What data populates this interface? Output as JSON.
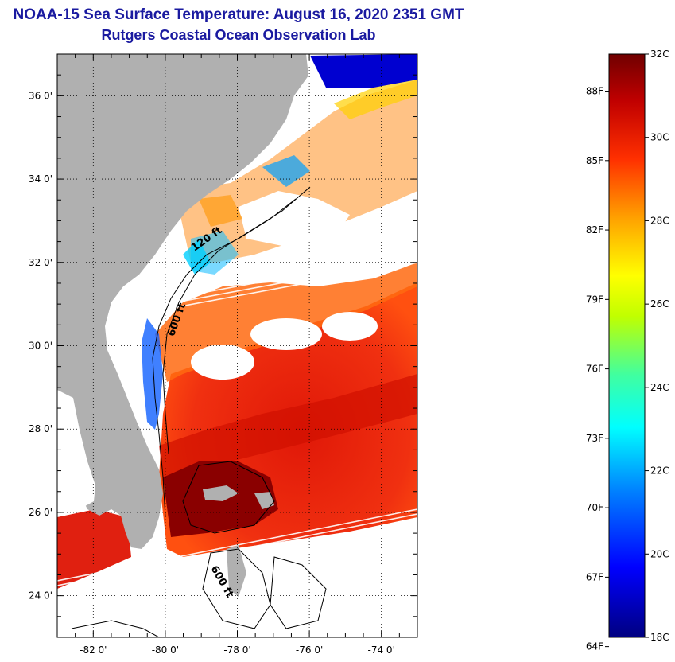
{
  "title": {
    "line1": "NOAA-15 Sea Surface Temperature:  August 16, 2020 2351 GMT",
    "line2": "Rutgers Coastal Ocean Observation Lab"
  },
  "map": {
    "lat_range": [
      23,
      37
    ],
    "lon_range": [
      -83,
      -73
    ],
    "lat_ticks": [
      {
        "value": 24,
        "label": "24 0'"
      },
      {
        "value": 26,
        "label": "26 0'"
      },
      {
        "value": 28,
        "label": "28 0'"
      },
      {
        "value": 30,
        "label": "30 0'"
      },
      {
        "value": 32,
        "label": "32 0'"
      },
      {
        "value": 34,
        "label": "34 0'"
      },
      {
        "value": 36,
        "label": "36 0'"
      }
    ],
    "lon_ticks": [
      {
        "value": -82,
        "label": "-82 0'"
      },
      {
        "value": -80,
        "label": "-80 0'"
      },
      {
        "value": -78,
        "label": "-78 0'"
      },
      {
        "value": -76,
        "label": "-76 0'"
      },
      {
        "value": -74,
        "label": "-74 0'"
      }
    ],
    "contour_labels": [
      {
        "text": "120 ft",
        "lon": -78.8,
        "lat": 32.5,
        "angle": -35
      },
      {
        "text": "600 ft",
        "lon": -79.6,
        "lat": 30.6,
        "angle": -70
      },
      {
        "text": "600 ft",
        "lon": -78.5,
        "lat": 24.3,
        "angle": 60
      }
    ],
    "land_color": "#b0b0b0",
    "cloud_color": "#ffffff"
  },
  "colorbar": {
    "min_c": 18,
    "max_c": 32,
    "celsius_ticks": [
      {
        "value": 32,
        "label": "32C"
      },
      {
        "value": 30,
        "label": "30C"
      },
      {
        "value": 28,
        "label": "28C"
      },
      {
        "value": 26,
        "label": "26C"
      },
      {
        "value": 24,
        "label": "24C"
      },
      {
        "value": 22,
        "label": "22C"
      },
      {
        "value": 20,
        "label": "20C"
      },
      {
        "value": 18,
        "label": "18C"
      }
    ],
    "fahrenheit_ticks": [
      {
        "value": 88,
        "label": "88F"
      },
      {
        "value": 85,
        "label": "85F"
      },
      {
        "value": 82,
        "label": "82F"
      },
      {
        "value": 79,
        "label": "79F"
      },
      {
        "value": 76,
        "label": "76F"
      },
      {
        "value": 73,
        "label": "73F"
      },
      {
        "value": 70,
        "label": "70F"
      },
      {
        "value": 67,
        "label": "67F"
      },
      {
        "value": 64,
        "label": "64F"
      }
    ]
  }
}
